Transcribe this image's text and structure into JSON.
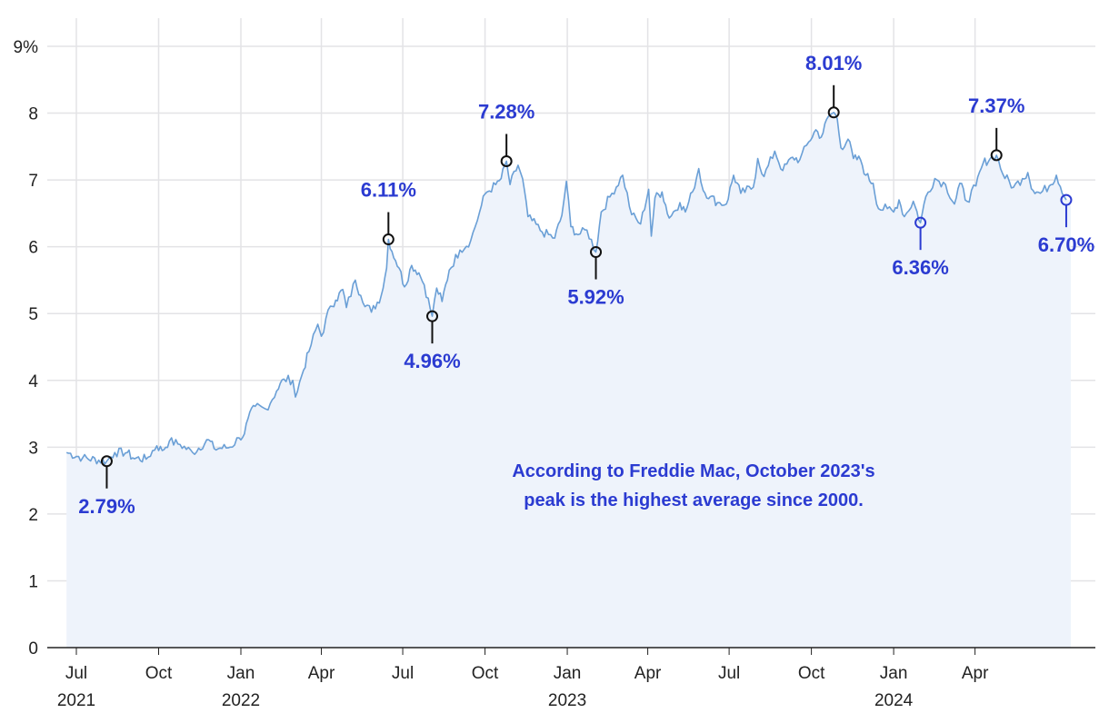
{
  "chart_data": {
    "type": "area",
    "title": "",
    "xlabel": "",
    "ylabel": "",
    "ylim": [
      0,
      9
    ],
    "y_ticks": [
      "0",
      "1",
      "2",
      "3",
      "4",
      "5",
      "6",
      "7",
      "8",
      "9%"
    ],
    "x_ticks": [
      {
        "date": "2021-07-01",
        "label": "Jul",
        "year": "2021"
      },
      {
        "date": "2021-10-01",
        "label": "Oct",
        "year": ""
      },
      {
        "date": "2022-01-01",
        "label": "Jan",
        "year": "2022"
      },
      {
        "date": "2022-04-01",
        "label": "Apr",
        "year": ""
      },
      {
        "date": "2022-07-01",
        "label": "Jul",
        "year": ""
      },
      {
        "date": "2022-10-01",
        "label": "Oct",
        "year": ""
      },
      {
        "date": "2023-01-01",
        "label": "Jan",
        "year": "2023"
      },
      {
        "date": "2023-04-01",
        "label": "Apr",
        "year": ""
      },
      {
        "date": "2023-07-01",
        "label": "Jul",
        "year": ""
      },
      {
        "date": "2023-10-01",
        "label": "Oct",
        "year": ""
      },
      {
        "date": "2024-01-01",
        "label": "Jan",
        "year": "2024"
      },
      {
        "date": "2024-04-01",
        "label": "Apr",
        "year": ""
      }
    ],
    "grid": true,
    "legend": "none",
    "colors": {
      "line": "#6a9fd6",
      "fill": "#eef3fb",
      "annotation": "#2b3bd1",
      "grid": "#e3e3e6"
    },
    "series": [
      {
        "x": [
          "2021-06-20",
          "2021-07-08",
          "2021-08-04",
          "2021-08-13",
          "2021-08-27",
          "2021-09-02",
          "2021-09-17",
          "2021-09-29",
          "2021-10-05",
          "2021-10-13",
          "2021-10-25",
          "2021-11-08",
          "2021-11-26",
          "2021-12-02",
          "2021-12-20",
          "2021-12-30",
          "2022-01-05",
          "2022-01-09",
          "2022-01-17",
          "2022-01-29",
          "2022-02-10",
          "2022-02-18",
          "2022-02-28",
          "2022-03-03",
          "2022-03-10",
          "2022-03-18",
          "2022-03-28",
          "2022-04-01",
          "2022-04-11",
          "2022-04-17",
          "2022-04-25",
          "2022-04-29",
          "2022-05-09",
          "2022-05-15",
          "2022-05-27",
          "2022-06-07",
          "2022-06-13",
          "2022-06-15",
          "2022-06-23",
          "2022-06-27",
          "2022-07-03",
          "2022-07-11",
          "2022-07-19",
          "2022-07-25",
          "2022-08-03",
          "2022-08-08",
          "2022-08-14",
          "2022-08-22",
          "2022-09-03",
          "2022-09-15",
          "2022-09-25",
          "2022-10-01",
          "2022-10-13",
          "2022-10-19",
          "2022-10-25",
          "2022-10-29",
          "2022-11-07",
          "2022-11-12",
          "2022-11-18",
          "2022-12-04",
          "2022-12-18",
          "2022-12-26",
          "2022-12-31",
          "2023-01-05",
          "2023-01-13",
          "2023-01-23",
          "2023-02-02",
          "2023-02-08",
          "2023-02-20",
          "2023-03-04",
          "2023-03-14",
          "2023-03-24",
          "2023-04-02",
          "2023-04-05",
          "2023-04-09",
          "2023-04-17",
          "2023-04-25",
          "2023-05-07",
          "2023-05-13",
          "2023-05-21",
          "2023-05-28",
          "2023-06-02",
          "2023-06-10",
          "2023-06-18",
          "2023-06-28",
          "2023-07-06",
          "2023-07-14",
          "2023-07-28",
          "2023-08-02",
          "2023-08-09",
          "2023-08-21",
          "2023-08-30",
          "2023-09-10",
          "2023-09-18",
          "2023-09-28",
          "2023-10-06",
          "2023-10-12",
          "2023-10-20",
          "2023-10-26",
          "2023-10-30",
          "2023-11-03",
          "2023-11-11",
          "2023-11-17",
          "2023-11-25",
          "2023-12-01",
          "2023-12-09",
          "2023-12-15",
          "2023-12-25",
          "2024-01-01",
          "2024-01-07",
          "2024-01-13",
          "2024-01-23",
          "2024-01-31",
          "2024-02-06",
          "2024-02-16",
          "2024-02-28",
          "2024-03-09",
          "2024-03-15",
          "2024-03-23",
          "2024-04-02",
          "2024-04-10",
          "2024-04-18",
          "2024-04-25",
          "2024-05-02",
          "2024-05-14",
          "2024-05-24",
          "2024-05-30",
          "2024-06-05",
          "2024-06-13",
          "2024-06-23",
          "2024-07-01",
          "2024-07-12"
        ],
        "y": [
          2.92,
          2.84,
          2.79,
          2.92,
          2.92,
          2.84,
          2.82,
          3.02,
          2.95,
          3.09,
          3.04,
          2.92,
          3.11,
          2.98,
          3.0,
          3.14,
          3.2,
          3.43,
          3.61,
          3.57,
          3.84,
          4.02,
          4.0,
          3.75,
          4.07,
          4.43,
          4.84,
          4.66,
          5.11,
          5.2,
          5.36,
          5.09,
          5.5,
          5.27,
          5.02,
          5.27,
          5.68,
          6.11,
          5.79,
          5.68,
          5.4,
          5.72,
          5.61,
          5.43,
          4.96,
          5.38,
          5.18,
          5.65,
          5.95,
          6.09,
          6.52,
          6.79,
          6.93,
          7.02,
          7.28,
          6.93,
          7.22,
          7.02,
          6.45,
          6.22,
          6.13,
          6.47,
          6.98,
          6.3,
          6.18,
          6.25,
          5.92,
          6.52,
          6.8,
          7.07,
          6.48,
          6.34,
          6.86,
          6.16,
          6.73,
          6.82,
          6.43,
          6.66,
          6.52,
          6.82,
          7.17,
          6.84,
          6.75,
          6.66,
          6.64,
          7.07,
          6.8,
          6.89,
          7.32,
          7.05,
          7.43,
          7.14,
          7.34,
          7.3,
          7.57,
          7.75,
          7.64,
          7.95,
          8.01,
          7.91,
          7.48,
          7.61,
          7.32,
          7.3,
          7.07,
          6.95,
          6.57,
          6.57,
          6.52,
          6.7,
          6.45,
          6.68,
          6.36,
          6.75,
          7.02,
          6.93,
          6.64,
          6.95,
          6.68,
          6.91,
          7.25,
          7.32,
          7.37,
          7.09,
          6.89,
          7.02,
          7.11,
          6.84,
          6.8,
          6.91,
          7.07,
          6.7
        ]
      }
    ],
    "annotations": [
      {
        "date": "2021-08-04",
        "value": 2.79,
        "label": "2.79%",
        "position": "below",
        "color": "#111111"
      },
      {
        "date": "2022-06-15",
        "value": 6.11,
        "label": "6.11%",
        "position": "above",
        "color": "#111111"
      },
      {
        "date": "2022-08-03",
        "value": 4.96,
        "label": "4.96%",
        "position": "below",
        "color": "#111111"
      },
      {
        "date": "2022-10-25",
        "value": 7.28,
        "label": "7.28%",
        "position": "above",
        "color": "#111111"
      },
      {
        "date": "2023-02-02",
        "value": 5.92,
        "label": "5.92%",
        "position": "below",
        "color": "#111111"
      },
      {
        "date": "2023-10-26",
        "value": 8.01,
        "label": "8.01%",
        "position": "above",
        "color": "#111111"
      },
      {
        "date": "2024-01-31",
        "value": 6.36,
        "label": "6.36%",
        "position": "below",
        "color": "#2b3bd1"
      },
      {
        "date": "2024-04-25",
        "value": 7.37,
        "label": "7.37%",
        "position": "above",
        "color": "#111111"
      },
      {
        "date": "2024-07-12",
        "value": 6.7,
        "label": "6.70%",
        "position": "below",
        "color": "#2b3bd1"
      }
    ],
    "note": [
      "According to Freddie Mac, October 2023's",
      "peak is the highest average since 2000."
    ]
  }
}
